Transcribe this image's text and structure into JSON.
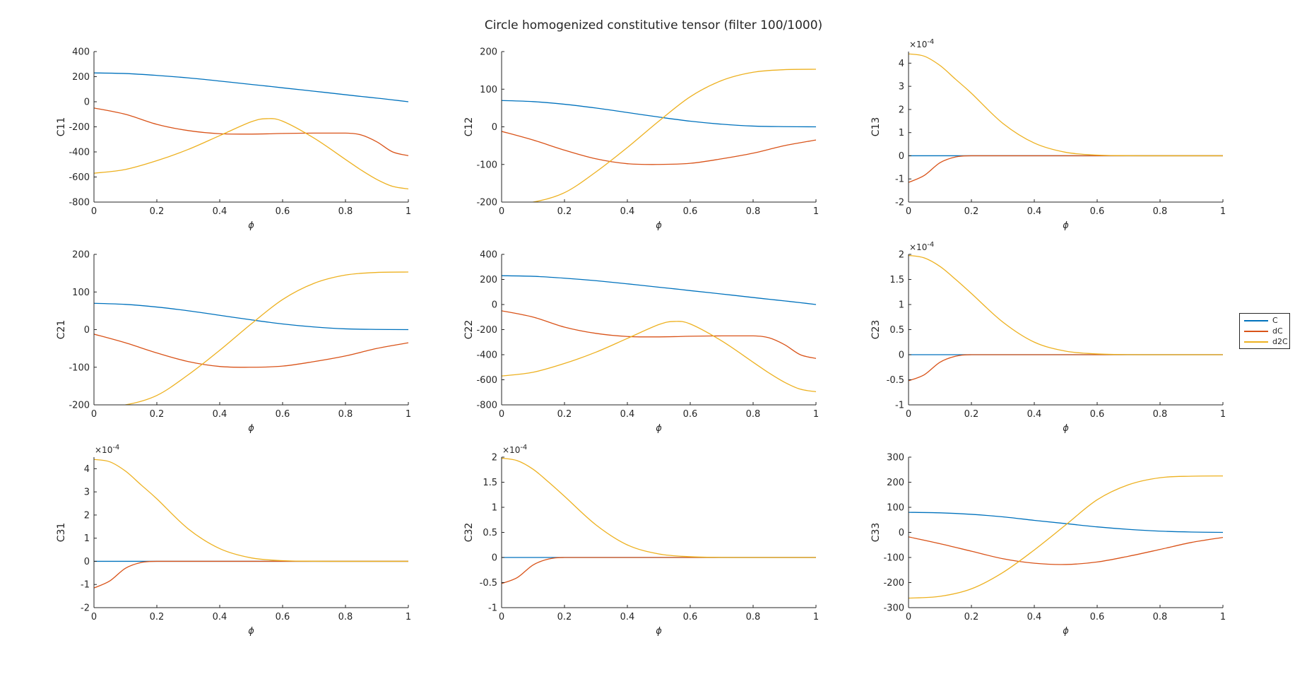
{
  "figure": {
    "title": "Circle homogenized constitutive tensor (filter 100/1000)"
  },
  "legend": {
    "placement": "right",
    "entries": [
      {
        "label": "C",
        "color": "#0072BD"
      },
      {
        "label": "dC",
        "color": "#D95319"
      },
      {
        "label": "d2C",
        "color": "#EDB120"
      }
    ]
  },
  "chart_data": [
    {
      "type": "line",
      "ylabel": "C11",
      "xlabel": "ϕ",
      "xlim": [
        0,
        1
      ],
      "ylim": [
        -800,
        400
      ],
      "yticks": [
        -800,
        -600,
        -400,
        -200,
        0,
        200,
        400
      ],
      "xticks": [
        0,
        0.2,
        0.4,
        0.6,
        0.8,
        1
      ],
      "exponent": "",
      "x": [
        0,
        0.1,
        0.2,
        0.3,
        0.4,
        0.5,
        0.55,
        0.6,
        0.7,
        0.8,
        0.85,
        0.9,
        0.95,
        1.0
      ],
      "series": [
        {
          "name": "C",
          "values": [
            230,
            225,
            210,
            190,
            165,
            138,
            125,
            111,
            84,
            56,
            42,
            29,
            15,
            0
          ]
        },
        {
          "name": "dC",
          "values": [
            -50,
            -100,
            -180,
            -230,
            -255,
            -258,
            -256,
            -253,
            -250,
            -250,
            -265,
            -320,
            -400,
            -430
          ]
        },
        {
          "name": "d2C",
          "values": [
            -570,
            -540,
            -470,
            -380,
            -270,
            -160,
            -135,
            -155,
            -290,
            -460,
            -545,
            -620,
            -675,
            -695
          ]
        }
      ]
    },
    {
      "type": "line",
      "ylabel": "C12",
      "xlabel": "ϕ",
      "xlim": [
        0,
        1
      ],
      "ylim": [
        -200,
        200
      ],
      "yticks": [
        -200,
        -100,
        0,
        100,
        200
      ],
      "xticks": [
        0,
        0.2,
        0.4,
        0.6,
        0.8,
        1
      ],
      "exponent": "",
      "x": [
        0,
        0.1,
        0.2,
        0.3,
        0.4,
        0.5,
        0.6,
        0.7,
        0.8,
        0.9,
        1.0
      ],
      "series": [
        {
          "name": "C",
          "values": [
            70,
            67,
            60,
            50,
            38,
            26,
            15,
            7,
            2,
            0.5,
            0
          ]
        },
        {
          "name": "dC",
          "values": [
            -12,
            -35,
            -62,
            -85,
            -98,
            -100,
            -97,
            -85,
            -70,
            -50,
            -35
          ]
        },
        {
          "name": "d2C",
          "values": [
            -205,
            -200,
            -175,
            -120,
            -55,
            15,
            80,
            123,
            145,
            152,
            153
          ]
        }
      ]
    },
    {
      "type": "line",
      "ylabel": "C13",
      "xlabel": "ϕ",
      "xlim": [
        0,
        1
      ],
      "ylim": [
        -2,
        4.5
      ],
      "yticks": [
        -2,
        -1,
        0,
        1,
        2,
        3,
        4
      ],
      "xticks": [
        0,
        0.2,
        0.4,
        0.6,
        0.8,
        1
      ],
      "exponent": "×10^-4",
      "x": [
        0,
        0.05,
        0.1,
        0.15,
        0.2,
        0.3,
        0.4,
        0.5,
        0.6,
        0.7,
        0.8,
        0.9,
        1.0
      ],
      "series": [
        {
          "name": "C",
          "values": [
            0,
            0,
            0,
            0,
            0,
            0,
            0,
            0,
            0,
            0,
            0,
            0,
            0
          ]
        },
        {
          "name": "dC",
          "values": [
            -1.15,
            -0.85,
            -0.3,
            -0.05,
            0,
            0,
            0,
            0,
            0,
            0,
            0,
            0,
            0
          ]
        },
        {
          "name": "d2C",
          "values": [
            4.4,
            4.3,
            3.9,
            3.3,
            2.7,
            1.4,
            0.55,
            0.15,
            0.03,
            0.005,
            0,
            0,
            0
          ]
        }
      ]
    },
    {
      "type": "line",
      "ylabel": "C21",
      "xlabel": "ϕ",
      "xlim": [
        0,
        1
      ],
      "ylim": [
        -200,
        200
      ],
      "yticks": [
        -200,
        -100,
        0,
        100,
        200
      ],
      "xticks": [
        0,
        0.2,
        0.4,
        0.6,
        0.8,
        1
      ],
      "exponent": "",
      "x": [
        0,
        0.1,
        0.2,
        0.3,
        0.4,
        0.5,
        0.6,
        0.7,
        0.8,
        0.9,
        1.0
      ],
      "series": [
        {
          "name": "C",
          "values": [
            70,
            67,
            60,
            50,
            38,
            26,
            15,
            7,
            2,
            0.5,
            0
          ]
        },
        {
          "name": "dC",
          "values": [
            -12,
            -35,
            -62,
            -85,
            -98,
            -100,
            -97,
            -85,
            -70,
            -50,
            -35
          ]
        },
        {
          "name": "d2C",
          "values": [
            -205,
            -200,
            -175,
            -120,
            -55,
            15,
            80,
            123,
            145,
            152,
            153
          ]
        }
      ]
    },
    {
      "type": "line",
      "ylabel": "C22",
      "xlabel": "ϕ",
      "xlim": [
        0,
        1
      ],
      "ylim": [
        -800,
        400
      ],
      "yticks": [
        -800,
        -600,
        -400,
        -200,
        0,
        200,
        400
      ],
      "xticks": [
        0,
        0.2,
        0.4,
        0.6,
        0.8,
        1
      ],
      "exponent": "",
      "x": [
        0,
        0.1,
        0.2,
        0.3,
        0.4,
        0.5,
        0.55,
        0.6,
        0.7,
        0.8,
        0.85,
        0.9,
        0.95,
        1.0
      ],
      "series": [
        {
          "name": "C",
          "values": [
            230,
            225,
            210,
            190,
            165,
            138,
            125,
            111,
            84,
            56,
            42,
            29,
            15,
            0
          ]
        },
        {
          "name": "dC",
          "values": [
            -50,
            -100,
            -180,
            -230,
            -255,
            -258,
            -256,
            -253,
            -250,
            -250,
            -265,
            -320,
            -400,
            -430
          ]
        },
        {
          "name": "d2C",
          "values": [
            -570,
            -540,
            -470,
            -380,
            -270,
            -160,
            -135,
            -155,
            -290,
            -460,
            -545,
            -620,
            -675,
            -695
          ]
        }
      ]
    },
    {
      "type": "line",
      "ylabel": "C23",
      "xlabel": "ϕ",
      "xlim": [
        0,
        1
      ],
      "ylim": [
        -1,
        2
      ],
      "yticks": [
        -1,
        -0.5,
        0,
        0.5,
        1,
        1.5,
        2
      ],
      "xticks": [
        0,
        0.2,
        0.4,
        0.6,
        0.8,
        1
      ],
      "exponent": "×10^-4",
      "x": [
        0,
        0.05,
        0.1,
        0.15,
        0.2,
        0.3,
        0.4,
        0.5,
        0.6,
        0.7,
        0.8,
        0.9,
        1.0
      ],
      "series": [
        {
          "name": "C",
          "values": [
            0,
            0,
            0,
            0,
            0,
            0,
            0,
            0,
            0,
            0,
            0,
            0,
            0
          ]
        },
        {
          "name": "dC",
          "values": [
            -0.52,
            -0.4,
            -0.15,
            -0.03,
            0,
            0,
            0,
            0,
            0,
            0,
            0,
            0,
            0
          ]
        },
        {
          "name": "d2C",
          "values": [
            1.98,
            1.93,
            1.76,
            1.5,
            1.22,
            0.65,
            0.25,
            0.07,
            0.015,
            0.002,
            0,
            0,
            0
          ]
        }
      ]
    },
    {
      "type": "line",
      "ylabel": "C31",
      "xlabel": "ϕ",
      "xlim": [
        0,
        1
      ],
      "ylim": [
        -2,
        4.5
      ],
      "yticks": [
        -2,
        -1,
        0,
        1,
        2,
        3,
        4
      ],
      "xticks": [
        0,
        0.2,
        0.4,
        0.6,
        0.8,
        1
      ],
      "exponent": "×10^-4",
      "x": [
        0,
        0.05,
        0.1,
        0.15,
        0.2,
        0.3,
        0.4,
        0.5,
        0.6,
        0.7,
        0.8,
        0.9,
        1.0
      ],
      "series": [
        {
          "name": "C",
          "values": [
            0,
            0,
            0,
            0,
            0,
            0,
            0,
            0,
            0,
            0,
            0,
            0,
            0
          ]
        },
        {
          "name": "dC",
          "values": [
            -1.15,
            -0.85,
            -0.3,
            -0.05,
            0,
            0,
            0,
            0,
            0,
            0,
            0,
            0,
            0
          ]
        },
        {
          "name": "d2C",
          "values": [
            4.4,
            4.3,
            3.9,
            3.3,
            2.7,
            1.4,
            0.55,
            0.15,
            0.03,
            0.005,
            0,
            0,
            0
          ]
        }
      ]
    },
    {
      "type": "line",
      "ylabel": "C32",
      "xlabel": "ϕ",
      "xlim": [
        0,
        1
      ],
      "ylim": [
        -1,
        2
      ],
      "yticks": [
        -1,
        -0.5,
        0,
        0.5,
        1,
        1.5,
        2
      ],
      "xticks": [
        0,
        0.2,
        0.4,
        0.6,
        0.8,
        1
      ],
      "exponent": "×10^-4",
      "x": [
        0,
        0.05,
        0.1,
        0.15,
        0.2,
        0.3,
        0.4,
        0.5,
        0.6,
        0.7,
        0.8,
        0.9,
        1.0
      ],
      "series": [
        {
          "name": "C",
          "values": [
            0,
            0,
            0,
            0,
            0,
            0,
            0,
            0,
            0,
            0,
            0,
            0,
            0
          ]
        },
        {
          "name": "dC",
          "values": [
            -0.52,
            -0.4,
            -0.15,
            -0.03,
            0,
            0,
            0,
            0,
            0,
            0,
            0,
            0,
            0
          ]
        },
        {
          "name": "d2C",
          "values": [
            1.98,
            1.93,
            1.76,
            1.5,
            1.22,
            0.65,
            0.25,
            0.07,
            0.015,
            0.002,
            0,
            0,
            0
          ]
        }
      ]
    },
    {
      "type": "line",
      "ylabel": "C33",
      "xlabel": "ϕ",
      "xlim": [
        0,
        1
      ],
      "ylim": [
        -300,
        300
      ],
      "yticks": [
        -300,
        -200,
        -100,
        0,
        100,
        200,
        300
      ],
      "xticks": [
        0,
        0.2,
        0.4,
        0.6,
        0.8,
        1
      ],
      "exponent": "",
      "x": [
        0,
        0.1,
        0.2,
        0.3,
        0.4,
        0.5,
        0.6,
        0.7,
        0.8,
        0.9,
        1.0
      ],
      "series": [
        {
          "name": "C",
          "values": [
            80,
            78,
            72,
            62,
            48,
            35,
            22,
            12,
            5,
            1.5,
            0
          ]
        },
        {
          "name": "dC",
          "values": [
            -18,
            -45,
            -75,
            -105,
            -123,
            -128,
            -118,
            -95,
            -68,
            -40,
            -20
          ]
        },
        {
          "name": "d2C",
          "values": [
            -262,
            -255,
            -225,
            -160,
            -70,
            30,
            130,
            190,
            218,
            224,
            225
          ]
        }
      ]
    }
  ]
}
